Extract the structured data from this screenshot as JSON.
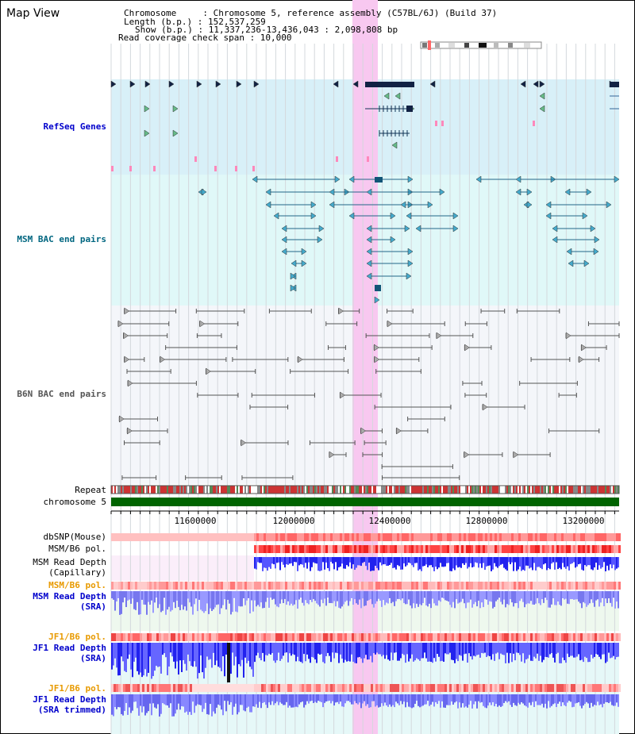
{
  "title": "Map View",
  "info": {
    "chromosome": "Chromosome     : Chromosome 5, reference assembly (C57BL/6J) (Build 37)",
    "length": "Length (b.p.) : 152,537,259",
    "show": "Show (b.p.) : 11,337,236-13,436,043 : 2,098,808 bp",
    "coverage": "Read coverage check span : 10,000"
  },
  "tracks": {
    "refseq": "RefSeq Genes",
    "msm_bac": "MSM BAC end pairs",
    "b6n_bac": "B6N BAC end pairs",
    "repeat": "Repeat",
    "chromosome": "chromosome 5",
    "dbsnp": "dbSNP(Mouse)",
    "msm_b6_pol": "MSM/B6 pol.",
    "msm_depth_cap_1": "MSM Read Depth",
    "msm_depth_cap_2": "(Capillary)",
    "msm_b6_pol_2": "MSM/B6 pol.",
    "msm_depth_sra_1": "MSM Read Depth",
    "msm_depth_sra_2": "(SRA)",
    "jf1_b6_pol": "JF1/B6 pol.",
    "jf1_depth_sra_1": "JF1 Read Depth",
    "jf1_depth_sra_2": "(SRA)",
    "jf1_b6_pol_2": "JF1/B6 pol.",
    "jf1_depth_trim_1": "JF1 Read Depth",
    "jf1_depth_trim_2": "(SRA trimmed)"
  },
  "axis_ticks": [
    "11600000",
    "12000000",
    "12400000",
    "12800000",
    "13200000"
  ],
  "colors": {
    "refseq_label": "#0000cc",
    "msm_label": "#006680",
    "b6n_label": "#555555",
    "pol_label": "#e89a00",
    "depth_label": "#0000cc",
    "highlight": "#f8c8f0",
    "chromosome": "#006400",
    "refseq_bg": "#d8f0f8",
    "msm_bg": "#e0f8f8"
  }
}
